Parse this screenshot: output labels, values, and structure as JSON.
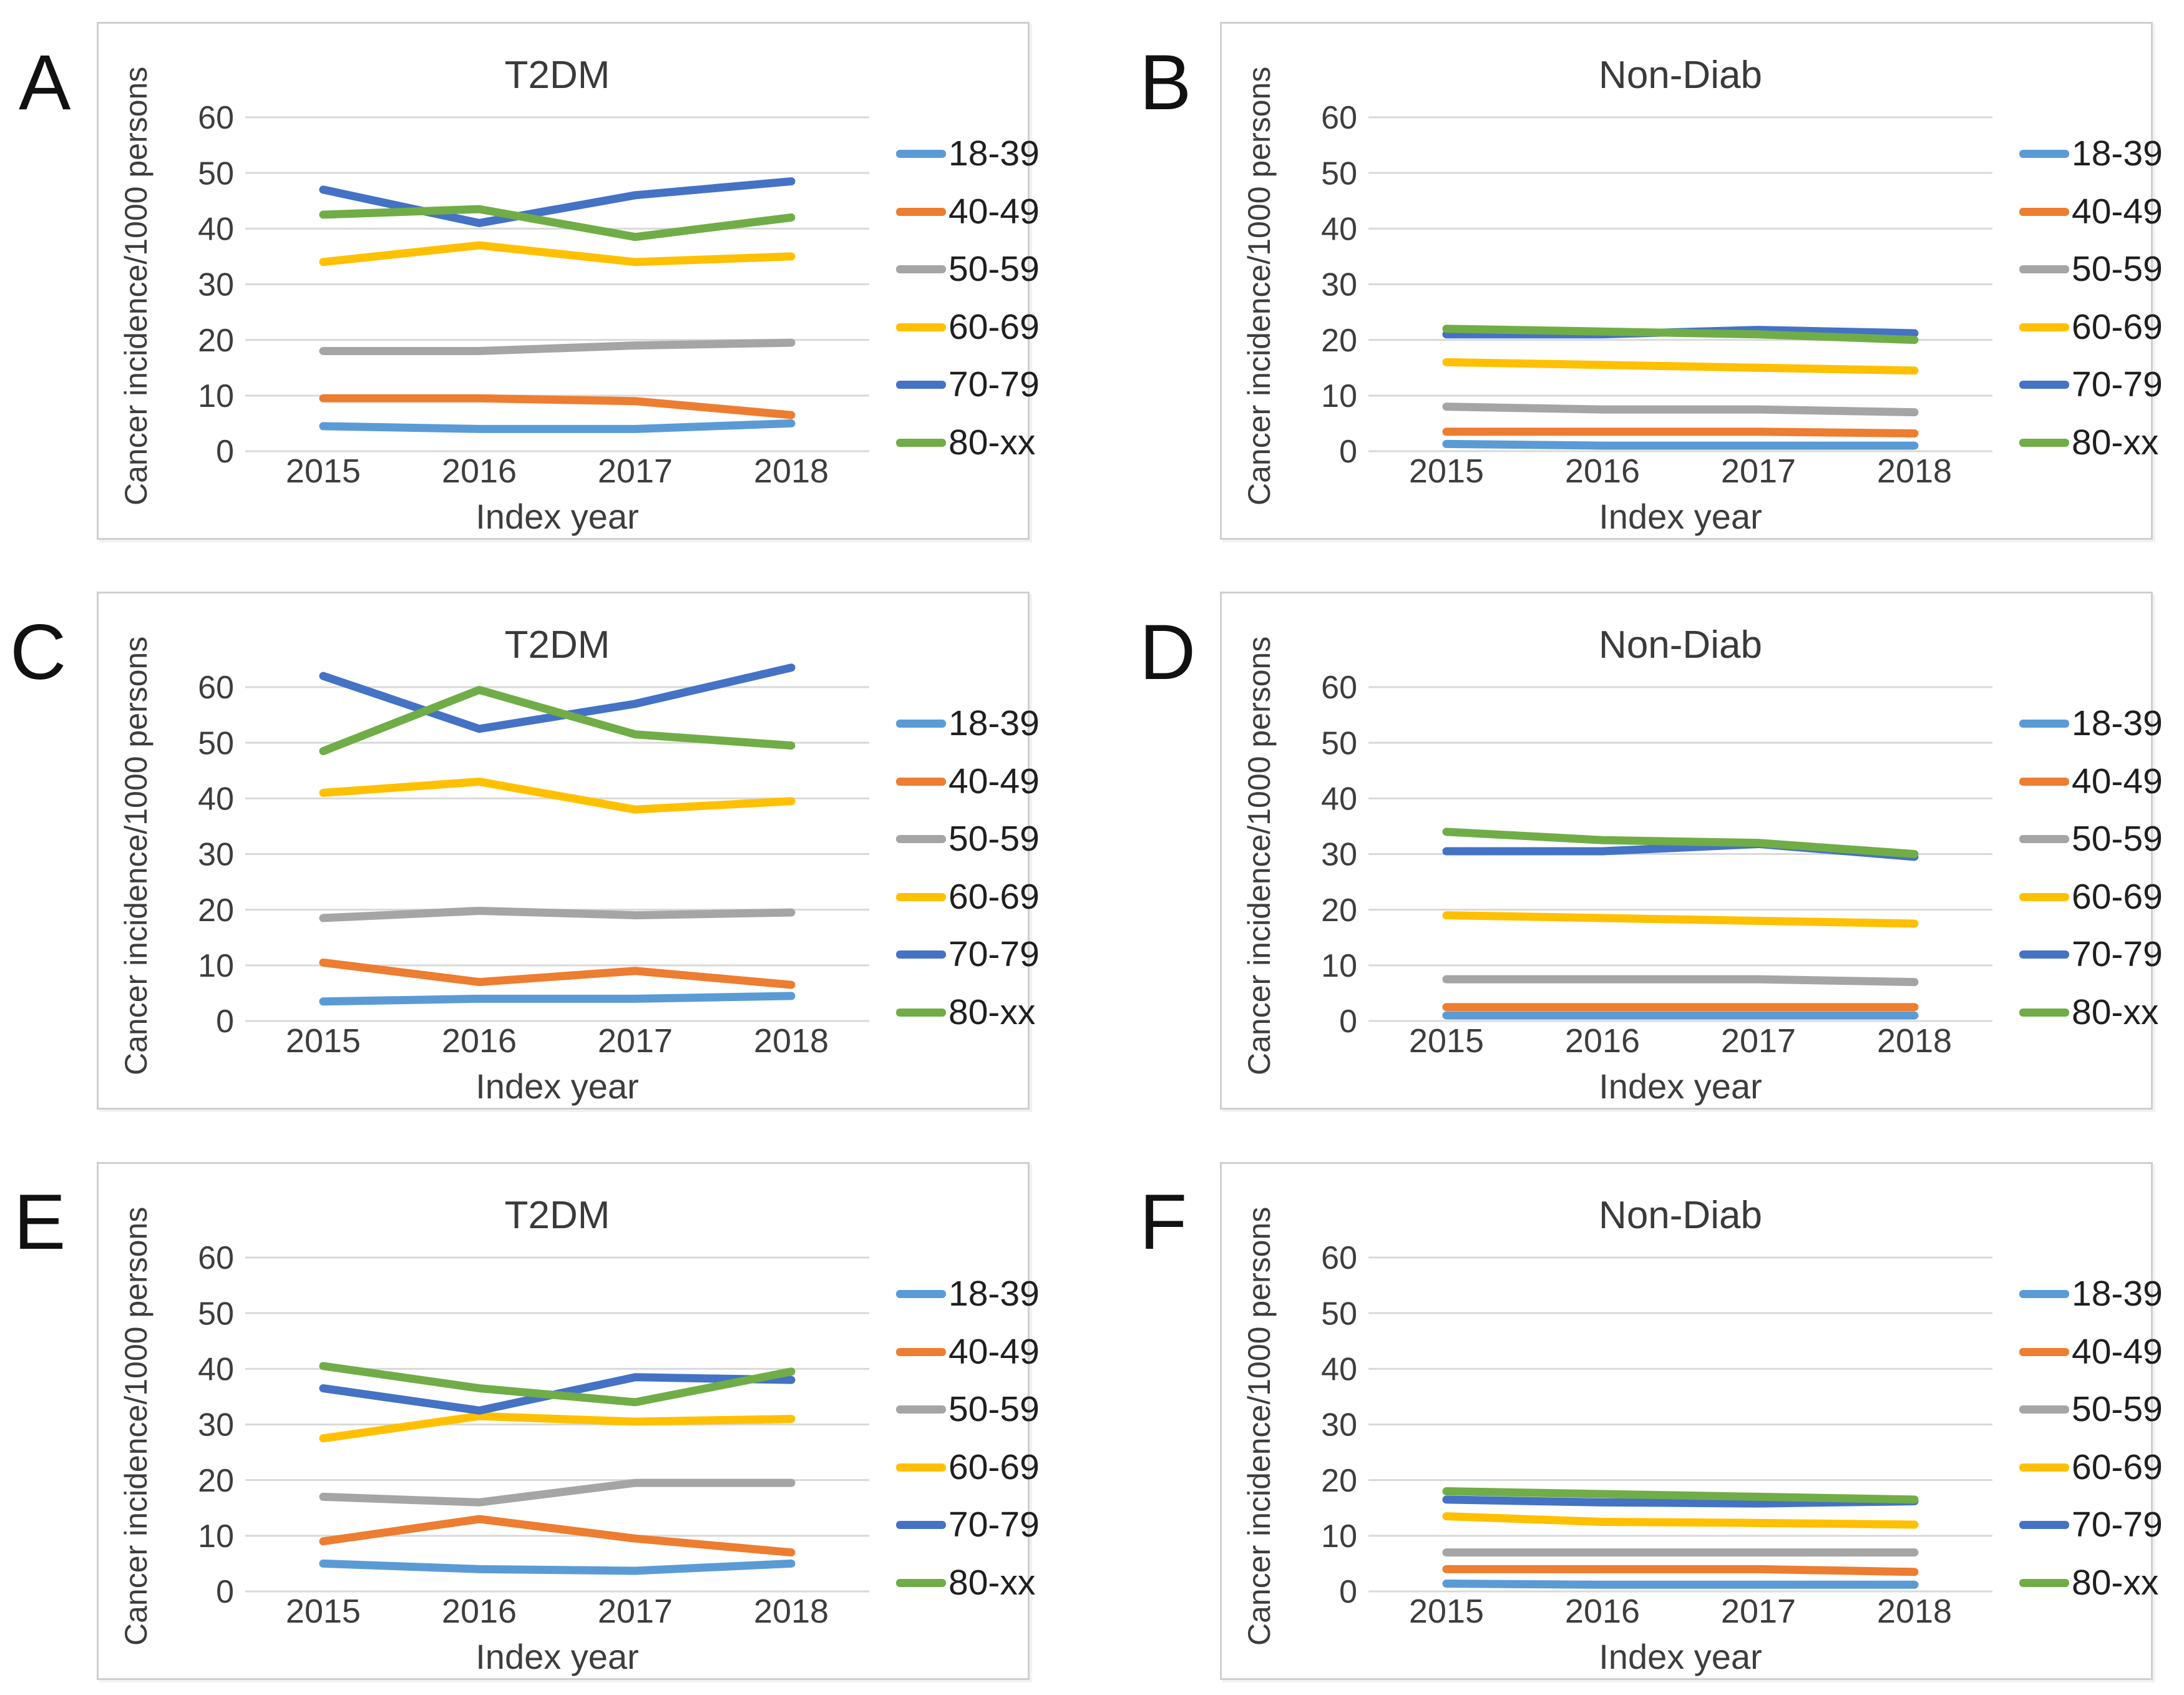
{
  "meta": {
    "background": "#FFFFFF",
    "gridline_color": "#D9D9D9",
    "panel_border_color": "#CFCFCF",
    "axis_text_color": "#3D3D3D",
    "series_colors": {
      "18-39": "#5B9BD5",
      "40-49": "#ED7D31",
      "50-59": "#A5A5A5",
      "60-69": "#FFC000",
      "70-79": "#4472C4",
      "80-xx": "#70AD47"
    }
  },
  "chart_data": [
    {
      "panel_label": "A",
      "type": "line",
      "title": "T2DM",
      "xlabel": "Index year",
      "ylabel": "Cancer incidence/1000 persons",
      "categories": [
        "2015",
        "2016",
        "2017",
        "2018"
      ],
      "ylim": [
        0,
        60
      ],
      "yticks": [
        0,
        10,
        20,
        30,
        40,
        50,
        60
      ],
      "grid": true,
      "legend_position": "right",
      "series": [
        {
          "name": "18-39",
          "color": "#5B9BD5",
          "values": [
            4.5,
            4,
            4,
            5
          ]
        },
        {
          "name": "40-49",
          "color": "#ED7D31",
          "values": [
            9.5,
            9.5,
            9,
            6.5
          ]
        },
        {
          "name": "50-59",
          "color": "#A5A5A5",
          "values": [
            18,
            18,
            19,
            19.5
          ]
        },
        {
          "name": "60-69",
          "color": "#FFC000",
          "values": [
            34,
            37,
            34,
            35
          ]
        },
        {
          "name": "70-79",
          "color": "#4472C4",
          "values": [
            47,
            41,
            46,
            48.5
          ]
        },
        {
          "name": "80-xx",
          "color": "#70AD47",
          "values": [
            42.5,
            43.5,
            38.5,
            42
          ]
        }
      ]
    },
    {
      "panel_label": "B",
      "type": "line",
      "title": "Non-Diab",
      "xlabel": "Index year",
      "ylabel": "Cancer incidence/1000 persons",
      "categories": [
        "2015",
        "2016",
        "2017",
        "2018"
      ],
      "ylim": [
        0,
        60
      ],
      "yticks": [
        0,
        10,
        20,
        30,
        40,
        50,
        60
      ],
      "grid": true,
      "legend_position": "right",
      "series": [
        {
          "name": "18-39",
          "color": "#5B9BD5",
          "values": [
            1.3,
            1,
            1,
            1
          ]
        },
        {
          "name": "40-49",
          "color": "#ED7D31",
          "values": [
            3.5,
            3.5,
            3.5,
            3.2
          ]
        },
        {
          "name": "50-59",
          "color": "#A5A5A5",
          "values": [
            8,
            7.5,
            7.5,
            7
          ]
        },
        {
          "name": "60-69",
          "color": "#FFC000",
          "values": [
            16,
            15.5,
            15,
            14.5
          ]
        },
        {
          "name": "70-79",
          "color": "#4472C4",
          "values": [
            21,
            21,
            21.8,
            21.2
          ]
        },
        {
          "name": "80-xx",
          "color": "#70AD47",
          "values": [
            22,
            21.5,
            21,
            20
          ]
        }
      ]
    },
    {
      "panel_label": "C",
      "type": "line",
      "title": "T2DM",
      "xlabel": "Index year",
      "ylabel": "Cancer incidence/1000 persons",
      "categories": [
        "2015",
        "2016",
        "2017",
        "2018"
      ],
      "ylim": [
        0,
        60
      ],
      "yticks": [
        0,
        10,
        20,
        30,
        40,
        50,
        60
      ],
      "grid": true,
      "legend_position": "right",
      "series": [
        {
          "name": "18-39",
          "color": "#5B9BD5",
          "values": [
            3.5,
            4,
            4,
            4.5
          ]
        },
        {
          "name": "40-49",
          "color": "#ED7D31",
          "values": [
            10.5,
            7,
            9,
            6.5
          ]
        },
        {
          "name": "50-59",
          "color": "#A5A5A5",
          "values": [
            18.5,
            19.8,
            19,
            19.5
          ]
        },
        {
          "name": "60-69",
          "color": "#FFC000",
          "values": [
            41,
            43,
            38,
            39.5
          ]
        },
        {
          "name": "70-79",
          "color": "#4472C4",
          "values": [
            62,
            52.5,
            57,
            63.5
          ]
        },
        {
          "name": "80-xx",
          "color": "#70AD47",
          "values": [
            48.5,
            59.5,
            51.5,
            49.5
          ]
        }
      ]
    },
    {
      "panel_label": "D",
      "type": "line",
      "title": "Non-Diab",
      "xlabel": "Index year",
      "ylabel": "Cancer incidence/1000 persons",
      "categories": [
        "2015",
        "2016",
        "2017",
        "2018"
      ],
      "ylim": [
        0,
        60
      ],
      "yticks": [
        0,
        10,
        20,
        30,
        40,
        50,
        60
      ],
      "grid": true,
      "legend_position": "right",
      "series": [
        {
          "name": "18-39",
          "color": "#5B9BD5",
          "values": [
            1,
            1,
            1,
            1
          ]
        },
        {
          "name": "40-49",
          "color": "#ED7D31",
          "values": [
            2.5,
            2.5,
            2.5,
            2.5
          ]
        },
        {
          "name": "50-59",
          "color": "#A5A5A5",
          "values": [
            7.5,
            7.5,
            7.5,
            7
          ]
        },
        {
          "name": "60-69",
          "color": "#FFC000",
          "values": [
            19,
            18.5,
            18,
            17.5
          ]
        },
        {
          "name": "70-79",
          "color": "#4472C4",
          "values": [
            30.5,
            30.5,
            31.8,
            29.5
          ]
        },
        {
          "name": "80-xx",
          "color": "#70AD47",
          "values": [
            34,
            32.5,
            32,
            30
          ]
        }
      ]
    },
    {
      "panel_label": "E",
      "type": "line",
      "title": "T2DM",
      "xlabel": "Index year",
      "ylabel": "Cancer incidence/1000 persons",
      "categories": [
        "2015",
        "2016",
        "2017",
        "2018"
      ],
      "ylim": [
        0,
        60
      ],
      "yticks": [
        0,
        10,
        20,
        30,
        40,
        50,
        60
      ],
      "grid": true,
      "legend_position": "right",
      "series": [
        {
          "name": "18-39",
          "color": "#5B9BD5",
          "values": [
            5,
            4,
            3.7,
            5
          ]
        },
        {
          "name": "40-49",
          "color": "#ED7D31",
          "values": [
            9,
            13,
            9.5,
            7
          ]
        },
        {
          "name": "50-59",
          "color": "#A5A5A5",
          "values": [
            17,
            16,
            19.5,
            19.5
          ]
        },
        {
          "name": "60-69",
          "color": "#FFC000",
          "values": [
            27.5,
            31.5,
            30.5,
            31
          ]
        },
        {
          "name": "70-79",
          "color": "#4472C4",
          "values": [
            36.5,
            32.5,
            38.5,
            38
          ]
        },
        {
          "name": "80-xx",
          "color": "#70AD47",
          "values": [
            40.5,
            36.5,
            34,
            39.5
          ]
        }
      ]
    },
    {
      "panel_label": "F",
      "type": "line",
      "title": "Non-Diab",
      "xlabel": "Index year",
      "ylabel": "Cancer incidence/1000 persons",
      "categories": [
        "2015",
        "2016",
        "2017",
        "2018"
      ],
      "ylim": [
        0,
        60
      ],
      "yticks": [
        0,
        10,
        20,
        30,
        40,
        50,
        60
      ],
      "grid": true,
      "legend_position": "right",
      "series": [
        {
          "name": "18-39",
          "color": "#5B9BD5",
          "values": [
            1.4,
            1.2,
            1.2,
            1.2
          ]
        },
        {
          "name": "40-49",
          "color": "#ED7D31",
          "values": [
            4,
            4,
            4,
            3.5
          ]
        },
        {
          "name": "50-59",
          "color": "#A5A5A5",
          "values": [
            7,
            7,
            7,
            7
          ]
        },
        {
          "name": "60-69",
          "color": "#FFC000",
          "values": [
            13.5,
            12.5,
            12.3,
            12
          ]
        },
        {
          "name": "70-79",
          "color": "#4472C4",
          "values": [
            16.5,
            16,
            15.8,
            16.2
          ]
        },
        {
          "name": "80-xx",
          "color": "#70AD47",
          "values": [
            18,
            17.5,
            17,
            16.5
          ]
        }
      ]
    }
  ]
}
